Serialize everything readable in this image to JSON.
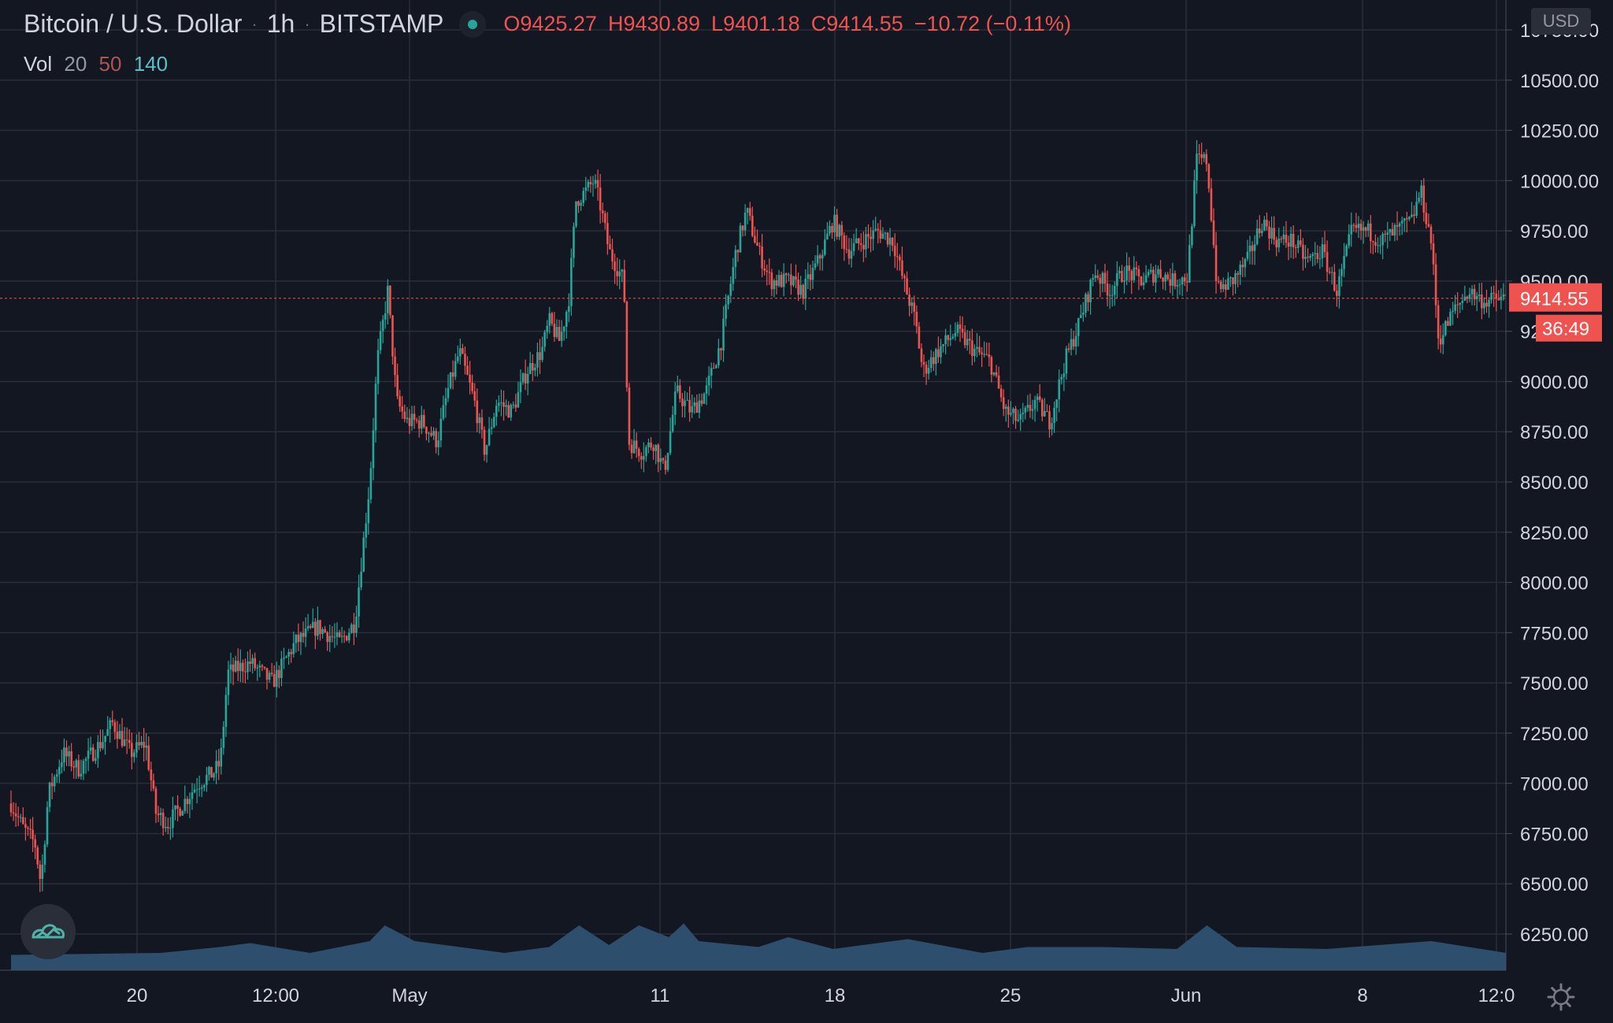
{
  "header": {
    "symbol": "Bitcoin / U.S. Dollar",
    "interval": "1h",
    "exchange": "BITSTAMP",
    "open_label": "O",
    "open": "9425.27",
    "high_label": "H",
    "high": "9430.89",
    "low_label": "L",
    "low": "9401.18",
    "close_label": "C",
    "close": "9414.55",
    "change": "−10.72 (−0.11%)"
  },
  "volume_legend": {
    "label": "Vol",
    "ma1": "20",
    "ma2": "50",
    "ma3": "140"
  },
  "currency": "USD",
  "last_price_label": "9414.55",
  "countdown": "36:49",
  "icons": {
    "logo": "tradingview-logo-icon",
    "settings": "gear-icon"
  },
  "colors": {
    "up": "#26a69a",
    "down": "#ef5350",
    "background": "#131722",
    "grid": "#2a2e39",
    "volume": "#2e4e6e",
    "text": "#d1d4dc"
  },
  "chart_data": {
    "type": "candlestick",
    "y_ticks": [
      "10750.00",
      "10500.00",
      "10250.00",
      "10000.00",
      "9750.00",
      "9500.00",
      "9250.00",
      "9000.00",
      "8750.00",
      "8500.00",
      "8250.00",
      "8000.00",
      "7750.00",
      "7500.00",
      "7250.00",
      "7000.00",
      "6750.00",
      "6500.00",
      "6250.00"
    ],
    "x_ticks": [
      "20",
      "12:00",
      "May",
      "11",
      "18",
      "25",
      "Jun",
      "8",
      "12:0"
    ],
    "ylim": [
      6100,
      10850
    ],
    "last_price": 9414.55,
    "grid": true,
    "price_path": [
      [
        0,
        6900
      ],
      [
        0.008,
        6780
      ],
      [
        0.016,
        6700
      ],
      [
        0.02,
        6500
      ],
      [
        0.025,
        6950
      ],
      [
        0.035,
        7150
      ],
      [
        0.045,
        7070
      ],
      [
        0.06,
        7200
      ],
      [
        0.068,
        7300
      ],
      [
        0.08,
        7150
      ],
      [
        0.09,
        7200
      ],
      [
        0.097,
        6850
      ],
      [
        0.105,
        6800
      ],
      [
        0.115,
        6900
      ],
      [
        0.125,
        7000
      ],
      [
        0.135,
        7050
      ],
      [
        0.14,
        7100
      ],
      [
        0.145,
        7550
      ],
      [
        0.16,
        7600
      ],
      [
        0.175,
        7500
      ],
      [
        0.19,
        7700
      ],
      [
        0.205,
        7780
      ],
      [
        0.22,
        7700
      ],
      [
        0.23,
        7800
      ],
      [
        0.24,
        8500
      ],
      [
        0.245,
        9100
      ],
      [
        0.252,
        9450
      ],
      [
        0.258,
        8900
      ],
      [
        0.265,
        8800
      ],
      [
        0.275,
        8800
      ],
      [
        0.285,
        8700
      ],
      [
        0.292,
        8950
      ],
      [
        0.3,
        9150
      ],
      [
        0.31,
        8900
      ],
      [
        0.317,
        8650
      ],
      [
        0.325,
        8900
      ],
      [
        0.335,
        8850
      ],
      [
        0.345,
        9050
      ],
      [
        0.355,
        9150
      ],
      [
        0.36,
        9300
      ],
      [
        0.367,
        9200
      ],
      [
        0.373,
        9400
      ],
      [
        0.378,
        9900
      ],
      [
        0.385,
        9950
      ],
      [
        0.39,
        10000
      ],
      [
        0.395,
        9850
      ],
      [
        0.4,
        9650
      ],
      [
        0.41,
        9500
      ],
      [
        0.413,
        8700
      ],
      [
        0.422,
        8650
      ],
      [
        0.43,
        8700
      ],
      [
        0.437,
        8550
      ],
      [
        0.445,
        8950
      ],
      [
        0.455,
        8850
      ],
      [
        0.465,
        8950
      ],
      [
        0.475,
        9200
      ],
      [
        0.485,
        9650
      ],
      [
        0.492,
        9850
      ],
      [
        0.5,
        9650
      ],
      [
        0.508,
        9500
      ],
      [
        0.52,
        9500
      ],
      [
        0.53,
        9450
      ],
      [
        0.54,
        9600
      ],
      [
        0.55,
        9800
      ],
      [
        0.56,
        9650
      ],
      [
        0.57,
        9700
      ],
      [
        0.58,
        9750
      ],
      [
        0.59,
        9700
      ],
      [
        0.597,
        9500
      ],
      [
        0.605,
        9300
      ],
      [
        0.61,
        9050
      ],
      [
        0.62,
        9150
      ],
      [
        0.632,
        9250
      ],
      [
        0.645,
        9150
      ],
      [
        0.655,
        9100
      ],
      [
        0.665,
        8850
      ],
      [
        0.675,
        8800
      ],
      [
        0.685,
        8900
      ],
      [
        0.695,
        8800
      ],
      [
        0.705,
        9100
      ],
      [
        0.715,
        9300
      ],
      [
        0.725,
        9550
      ],
      [
        0.735,
        9450
      ],
      [
        0.745,
        9550
      ],
      [
        0.757,
        9500
      ],
      [
        0.767,
        9550
      ],
      [
        0.777,
        9500
      ],
      [
        0.787,
        9520
      ],
      [
        0.793,
        10100
      ],
      [
        0.8,
        10100
      ],
      [
        0.807,
        9450
      ],
      [
        0.817,
        9500
      ],
      [
        0.827,
        9600
      ],
      [
        0.837,
        9800
      ],
      [
        0.847,
        9700
      ],
      [
        0.857,
        9700
      ],
      [
        0.867,
        9600
      ],
      [
        0.877,
        9650
      ],
      [
        0.887,
        9450
      ],
      [
        0.897,
        9750
      ],
      [
        0.907,
        9750
      ],
      [
        0.917,
        9700
      ],
      [
        0.927,
        9750
      ],
      [
        0.937,
        9800
      ],
      [
        0.943,
        9950
      ],
      [
        0.95,
        9700
      ],
      [
        0.955,
        9200
      ],
      [
        0.965,
        9350
      ],
      [
        0.975,
        9450
      ],
      [
        0.985,
        9400
      ],
      [
        1.0,
        9414.55
      ]
    ],
    "volume_path": [
      [
        0,
        0.15
      ],
      [
        0.1,
        0.2
      ],
      [
        0.14,
        0.35
      ],
      [
        0.16,
        0.45
      ],
      [
        0.2,
        0.2
      ],
      [
        0.24,
        0.5
      ],
      [
        0.25,
        0.9
      ],
      [
        0.27,
        0.5
      ],
      [
        0.33,
        0.2
      ],
      [
        0.36,
        0.35
      ],
      [
        0.38,
        0.9
      ],
      [
        0.4,
        0.4
      ],
      [
        0.42,
        0.9
      ],
      [
        0.44,
        0.6
      ],
      [
        0.45,
        0.95
      ],
      [
        0.46,
        0.5
      ],
      [
        0.5,
        0.35
      ],
      [
        0.52,
        0.6
      ],
      [
        0.55,
        0.3
      ],
      [
        0.6,
        0.55
      ],
      [
        0.65,
        0.2
      ],
      [
        0.68,
        0.35
      ],
      [
        0.73,
        0.35
      ],
      [
        0.78,
        0.3
      ],
      [
        0.8,
        0.9
      ],
      [
        0.82,
        0.35
      ],
      [
        0.88,
        0.3
      ],
      [
        0.95,
        0.5
      ],
      [
        1.0,
        0.2
      ]
    ]
  }
}
